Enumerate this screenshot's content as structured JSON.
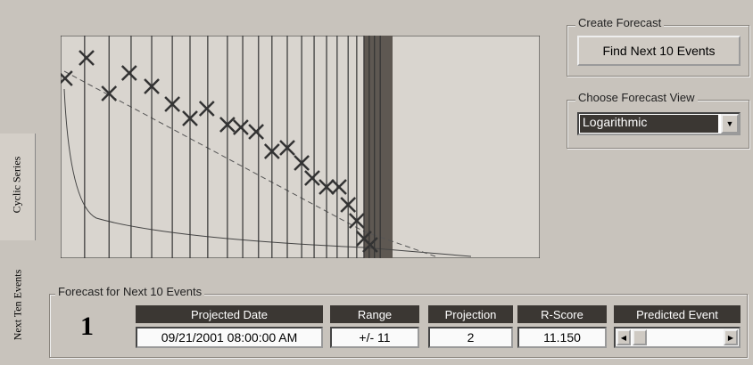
{
  "tabs": [
    "Cyclic Series",
    "Next Ten Events"
  ],
  "plot": {
    "xlim": [
      0,
      100
    ],
    "ylim": [
      0,
      100
    ],
    "events": [
      5.0,
      10.1,
      14.7,
      19.0,
      23.3,
      27.0,
      30.7,
      34.8,
      38.0,
      41.3,
      44.1,
      47.3,
      50.3,
      52.9,
      55.5,
      57.7,
      60.0,
      61.8,
      63.3,
      64.4,
      65.5,
      66.7
    ],
    "x": [
      0.9,
      5.4,
      10.1,
      14.3,
      19.0,
      23.3,
      27.0,
      30.5,
      34.8,
      37.6,
      40.8,
      44.1,
      47.3,
      50.3,
      52.5,
      55.5,
      58.1,
      60.0,
      61.8,
      63.3,
      64.6
    ],
    "y": [
      80.8,
      90,
      74,
      83.2,
      77.2,
      69.2,
      62.8,
      67.2,
      60,
      58.8,
      56.8,
      48,
      49.6,
      42.8,
      36,
      32,
      32,
      24,
      16.8,
      8.8,
      6
    ]
  },
  "create": {
    "title": "Create Forecast",
    "button": "Find Next 10 Events"
  },
  "view": {
    "title": "Choose Forecast View",
    "selected": "Logarithmic"
  },
  "forecast": {
    "title": "Forecast for Next 10 Events",
    "index": 1,
    "headers": [
      "Projected Date",
      "Range",
      "Projection",
      "R-Score",
      "Predicted Event"
    ],
    "values": [
      "09/21/2001 08:00:00 AM",
      "+/- 11",
      2,
      "11.150"
    ]
  }
}
